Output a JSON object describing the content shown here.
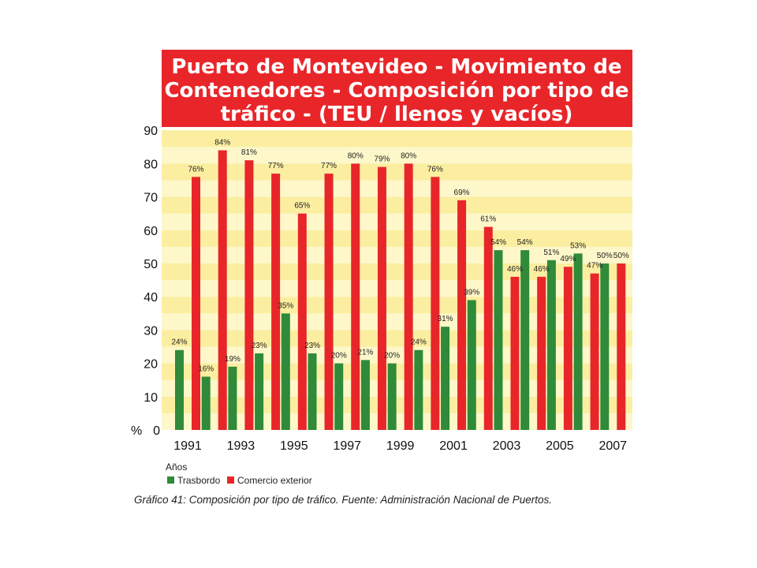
{
  "chart_data": {
    "type": "bar",
    "title_lines": [
      "Puerto de Montevideo - Movimiento de",
      "Contenedores - Composición por tipo de",
      "tráfico - (TEU / llenos y vacíos)"
    ],
    "ylabel": "%",
    "xlabel": "Años",
    "ylim": [
      0,
      90
    ],
    "yticks": [
      0,
      10,
      20,
      30,
      40,
      50,
      60,
      70,
      80,
      90
    ],
    "categories": [
      "1991",
      "1992",
      "1993",
      "1994",
      "1995",
      "1996",
      "1997",
      "1998",
      "1999",
      "2000",
      "2001",
      "2002",
      "2003",
      "2004",
      "2005",
      "2006",
      "2007"
    ],
    "x_tick_labels": [
      "1991",
      "",
      "1993",
      "",
      "1995",
      "",
      "1997",
      "",
      "1999",
      "",
      "2001",
      "",
      "2003",
      "",
      "2005",
      "",
      "2007"
    ],
    "series": [
      {
        "name": "Trasbordo",
        "color": "#2f8a3a",
        "values": [
          24,
          16,
          19,
          23,
          35,
          23,
          20,
          21,
          20,
          24,
          31,
          39,
          54,
          54,
          51,
          53,
          50
        ]
      },
      {
        "name": "Comercio exterior",
        "color": "#e8262a",
        "values": [
          76,
          84,
          81,
          77,
          65,
          77,
          80,
          79,
          80,
          76,
          69,
          61,
          46,
          46,
          49,
          47,
          50
        ]
      }
    ],
    "legend_position": "bottom-left",
    "background_bands": true
  },
  "caption": "Gráfico 41: Composición por tipo de tráfico. Fuente: Administración Nacional de Puertos.",
  "colors": {
    "title_bg": "#e8262a",
    "band_light": "#fdf7c9",
    "band_dark": "#fbeea0"
  }
}
